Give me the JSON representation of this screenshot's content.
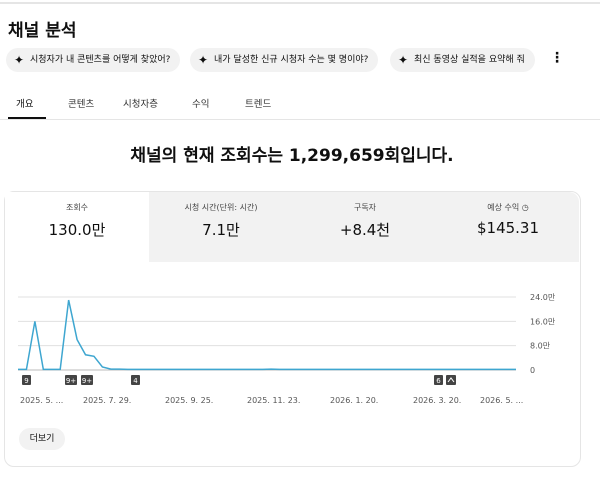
{
  "header": {
    "title": "채널 분석"
  },
  "chips": [
    "시청자가 내 콘텐츠를 어떻게 찾았어?",
    "내가 달성한 신규 시청자 수는 몇 명이야?",
    "최신 동영상 실적을 요약해 줘"
  ],
  "tabs": [
    "개요",
    "콘텐츠",
    "시청자층",
    "수익",
    "트렌드"
  ],
  "headline": "채널의 현재 조회수는 1,299,659회입니다.",
  "metrics": [
    {
      "label": "조회수",
      "value": "130.0만"
    },
    {
      "label": "시청 시간(단위: 시간)",
      "value": "7.1만"
    },
    {
      "label": "구독자",
      "value": "+8.4천"
    },
    {
      "label": "예상 수익",
      "value": "$145.31"
    }
  ],
  "chart": {
    "type": "line",
    "color": "#3ea6d0",
    "values": [
      0.2,
      0.2,
      16,
      0.2,
      0.2,
      0.2,
      23,
      10,
      5,
      4.5,
      1,
      0.3,
      0.3,
      0.2,
      0.2,
      0.2,
      0.2,
      0.2,
      0.2,
      0.2,
      0.2,
      0.2,
      0.2,
      0.2,
      0.2,
      0.2,
      0.2,
      0.2,
      0.2,
      0.2,
      0.3,
      0.2,
      0.2,
      0.2,
      0.2,
      0.2,
      0.2,
      0.2,
      0.2,
      0.2,
      0.2,
      0.2,
      0.2,
      0.2,
      0.2,
      0.2,
      0.2,
      0.2,
      0.2,
      0.2,
      0.2,
      0.2,
      0.2,
      0.2,
      0.2,
      0.2,
      0.2,
      0.2,
      0.2,
      0.2
    ],
    "ylim": [
      0,
      24
    ],
    "yticks": [
      {
        "value": 24,
        "label": "24.0만"
      },
      {
        "value": 16,
        "label": "16.0만"
      },
      {
        "value": 8,
        "label": "8.0만"
      },
      0
    ],
    "markers": [
      "9",
      "9+",
      "9+",
      "4",
      "6"
    ],
    "x_labels": [
      "2025. 5. ...",
      "2025. 7. 29.",
      "2025. 9. 25.",
      "2025. 11. 23.",
      "2026. 1. 20.",
      "2026. 3. 20.",
      "2026. 5. ..."
    ]
  },
  "more_button": "더보기"
}
